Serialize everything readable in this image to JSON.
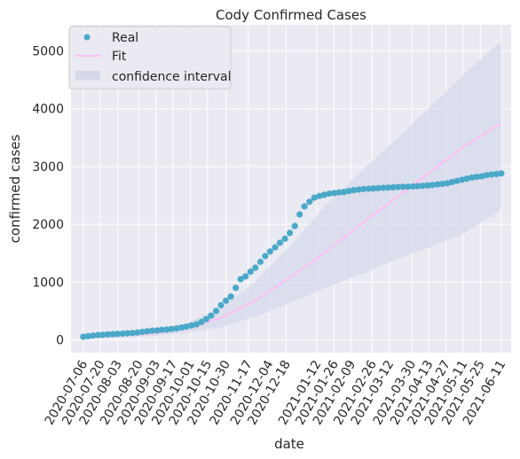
{
  "chart_data": {
    "type": "scatter",
    "title": "Cody Confirmed Cases",
    "xlabel": "date",
    "ylabel": "confirmed cases",
    "xlim": [
      "2020-06-26",
      "2021-06-19"
    ],
    "ylim": [
      -220,
      5450
    ],
    "xticks": [
      "2020-07-06",
      "2020-07-20",
      "2020-08-03",
      "2020-08-20",
      "2020-09-03",
      "2020-09-17",
      "2020-10-01",
      "2020-10-15",
      "2020-10-30",
      "2020-11-17",
      "2020-12-04",
      "2020-12-18",
      "2021-01-12",
      "2021-01-26",
      "2021-02-09",
      "2021-02-26",
      "2021-03-12",
      "2021-03-30",
      "2021-04-13",
      "2021-04-27",
      "2021-05-11",
      "2021-05-25",
      "2021-06-11"
    ],
    "yticks": [
      0,
      1000,
      2000,
      3000,
      4000,
      5000
    ],
    "grid": true,
    "legend_position": "top-left",
    "colors": {
      "background": "#eaeaf2",
      "grid": "#ffffff",
      "real": "#4aa8c8",
      "fit": "#ffbdf7",
      "band": "#d4d8ea"
    },
    "series": [
      {
        "name": "Real",
        "kind": "scatter",
        "x": [
          "2020-07-06",
          "2020-07-10",
          "2020-07-14",
          "2020-07-18",
          "2020-07-22",
          "2020-07-26",
          "2020-07-30",
          "2020-08-03",
          "2020-08-07",
          "2020-08-11",
          "2020-08-15",
          "2020-08-19",
          "2020-08-23",
          "2020-08-27",
          "2020-08-31",
          "2020-09-04",
          "2020-09-08",
          "2020-09-12",
          "2020-09-16",
          "2020-09-20",
          "2020-09-24",
          "2020-09-28",
          "2020-10-02",
          "2020-10-06",
          "2020-10-10",
          "2020-10-14",
          "2020-10-18",
          "2020-10-22",
          "2020-10-26",
          "2020-10-30",
          "2020-11-03",
          "2020-11-07",
          "2020-11-11",
          "2020-11-15",
          "2020-11-19",
          "2020-11-23",
          "2020-11-27",
          "2020-12-01",
          "2020-12-05",
          "2020-12-09",
          "2020-12-13",
          "2020-12-17",
          "2020-12-21",
          "2020-12-25",
          "2020-12-29",
          "2021-01-02",
          "2021-01-06",
          "2021-01-10",
          "2021-01-14",
          "2021-01-18",
          "2021-01-22",
          "2021-01-26",
          "2021-01-30",
          "2021-02-03",
          "2021-02-07",
          "2021-02-11",
          "2021-02-15",
          "2021-02-19",
          "2021-02-23",
          "2021-02-27",
          "2021-03-03",
          "2021-03-07",
          "2021-03-11",
          "2021-03-15",
          "2021-03-19",
          "2021-03-23",
          "2021-03-27",
          "2021-03-31",
          "2021-04-04",
          "2021-04-08",
          "2021-04-12",
          "2021-04-16",
          "2021-04-20",
          "2021-04-24",
          "2021-04-28",
          "2021-05-02",
          "2021-05-06",
          "2021-05-10",
          "2021-05-14",
          "2021-05-18",
          "2021-05-22",
          "2021-05-26",
          "2021-05-30",
          "2021-06-03",
          "2021-06-07",
          "2021-06-11"
        ],
        "values": [
          55,
          65,
          75,
          85,
          90,
          95,
          100,
          105,
          110,
          115,
          120,
          130,
          140,
          150,
          160,
          165,
          175,
          180,
          190,
          200,
          215,
          230,
          250,
          270,
          310,
          360,
          420,
          500,
          600,
          680,
          750,
          900,
          1050,
          1100,
          1180,
          1250,
          1350,
          1450,
          1530,
          1600,
          1680,
          1750,
          1850,
          1970,
          2170,
          2310,
          2390,
          2460,
          2490,
          2510,
          2530,
          2540,
          2550,
          2560,
          2575,
          2590,
          2600,
          2610,
          2615,
          2620,
          2625,
          2630,
          2635,
          2640,
          2645,
          2648,
          2650,
          2655,
          2660,
          2665,
          2670,
          2680,
          2690,
          2700,
          2710,
          2730,
          2750,
          2770,
          2790,
          2810,
          2820,
          2830,
          2850,
          2860,
          2870,
          2880
        ]
      },
      {
        "name": "Fit",
        "kind": "line",
        "x": [
          "2020-07-06",
          "2020-08-03",
          "2020-08-31",
          "2020-09-28",
          "2020-10-26",
          "2020-11-23",
          "2020-12-21",
          "2021-01-18",
          "2021-02-15",
          "2021-03-15",
          "2021-04-12",
          "2021-05-10",
          "2021-06-07",
          "2021-06-11"
        ],
        "values": [
          40,
          70,
          110,
          200,
          380,
          680,
          1080,
          1500,
          1970,
          2420,
          2870,
          3320,
          3700,
          3740
        ]
      },
      {
        "name": "confidence interval",
        "kind": "band",
        "x": [
          "2020-07-06",
          "2020-08-03",
          "2020-08-31",
          "2020-09-28",
          "2020-10-26",
          "2020-11-23",
          "2020-12-21",
          "2021-01-18",
          "2021-02-15",
          "2021-03-15",
          "2021-04-12",
          "2021-05-10",
          "2021-06-07",
          "2021-06-11"
        ],
        "lower": [
          30,
          40,
          70,
          120,
          220,
          400,
          640,
          890,
          1120,
          1370,
          1590,
          1820,
          2200,
          2280
        ],
        "upper": [
          50,
          100,
          160,
          290,
          560,
          1010,
          1620,
          2300,
          2880,
          3420,
          3990,
          4560,
          5100,
          5150
        ]
      }
    ]
  }
}
